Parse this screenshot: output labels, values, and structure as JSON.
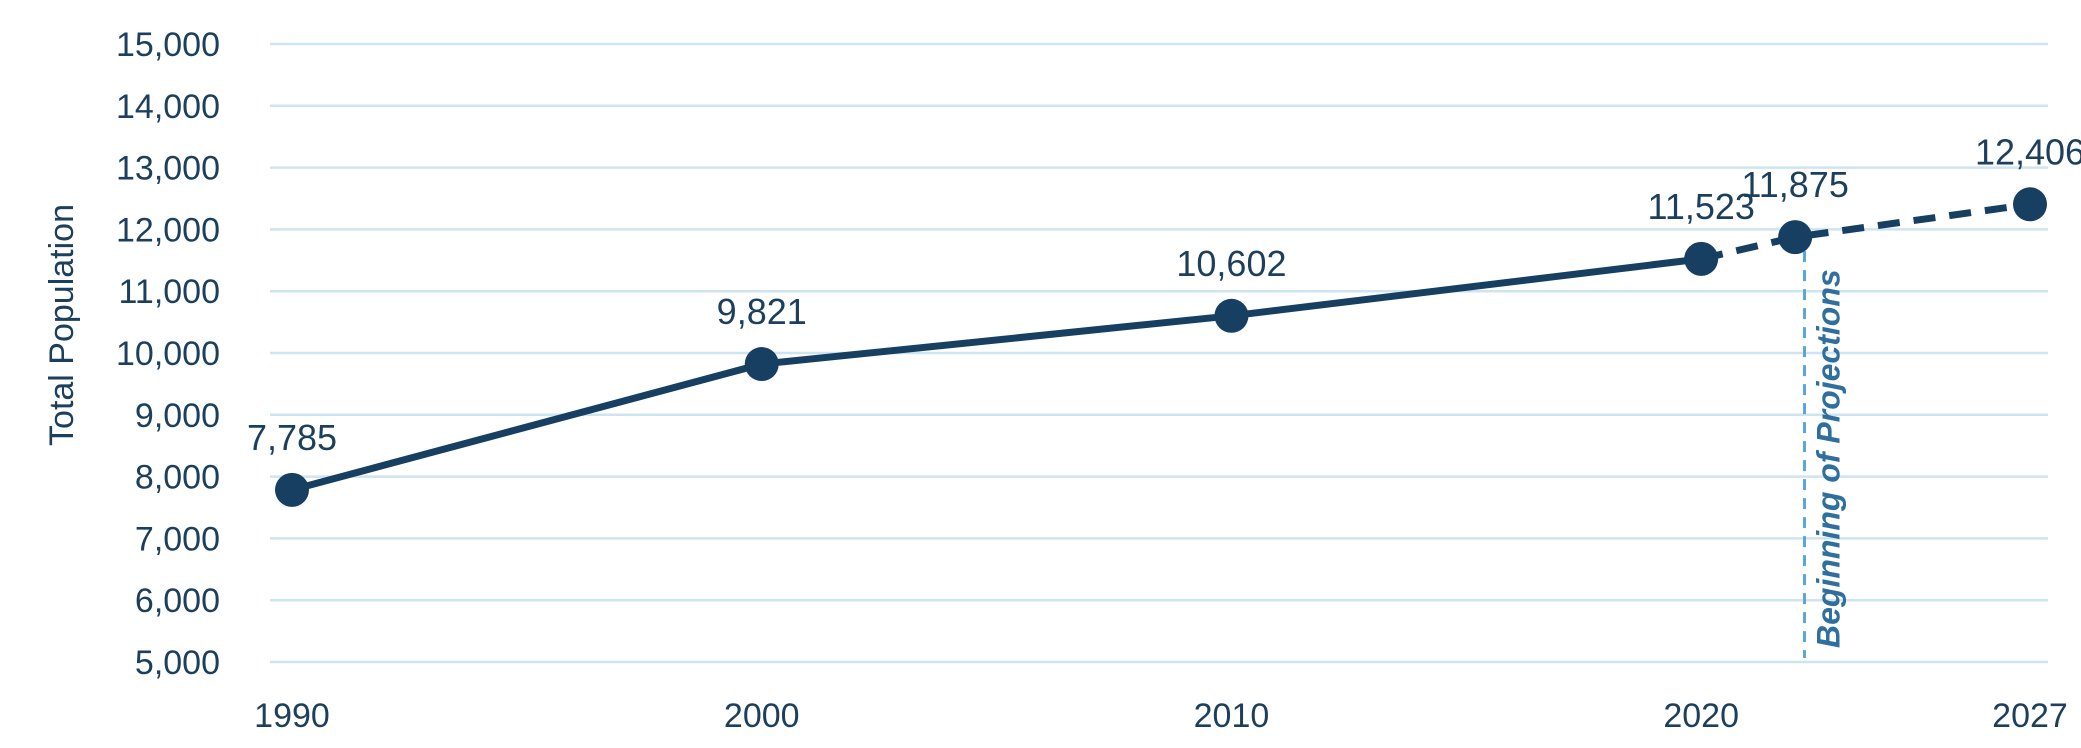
{
  "chart_data": {
    "type": "line",
    "title": "",
    "xlabel": "",
    "ylabel": "Total Population",
    "x": [
      1990,
      2000,
      2010,
      2020,
      2022,
      2027
    ],
    "series": [
      {
        "values": [
          7785,
          9821,
          10602,
          11523,
          11875,
          12406
        ],
        "data_labels": [
          "7,785",
          "9,821",
          "10,602",
          "11,523",
          "11,875",
          "12,406"
        ],
        "projected_from_index": 3
      }
    ],
    "x_tick_values": [
      1990,
      2000,
      2010,
      2020,
      2027
    ],
    "x_tick_labels": [
      "1990",
      "2000",
      "2010",
      "2020",
      "2027"
    ],
    "y_tick_values": [
      5000,
      6000,
      7000,
      8000,
      9000,
      10000,
      11000,
      12000,
      13000,
      14000,
      15000
    ],
    "y_tick_labels": [
      "5,000",
      "6,000",
      "7,000",
      "8,000",
      "9,000",
      "10,000",
      "11,000",
      "12,000",
      "13,000",
      "14,000",
      "15,000"
    ],
    "ylim": [
      5000,
      15000
    ],
    "xlim": [
      1990,
      2027
    ],
    "grid": true,
    "legend": "none",
    "annotation": {
      "text": "Beginning of Projections",
      "x": 2022.2
    },
    "colors": {
      "line": "#163f62",
      "marker": "#163f62",
      "grid": "#cfe4f1",
      "annotation_line": "#5aa7d6",
      "annotation_text": "#2e6f9e",
      "text": "#1b3f5c"
    }
  }
}
